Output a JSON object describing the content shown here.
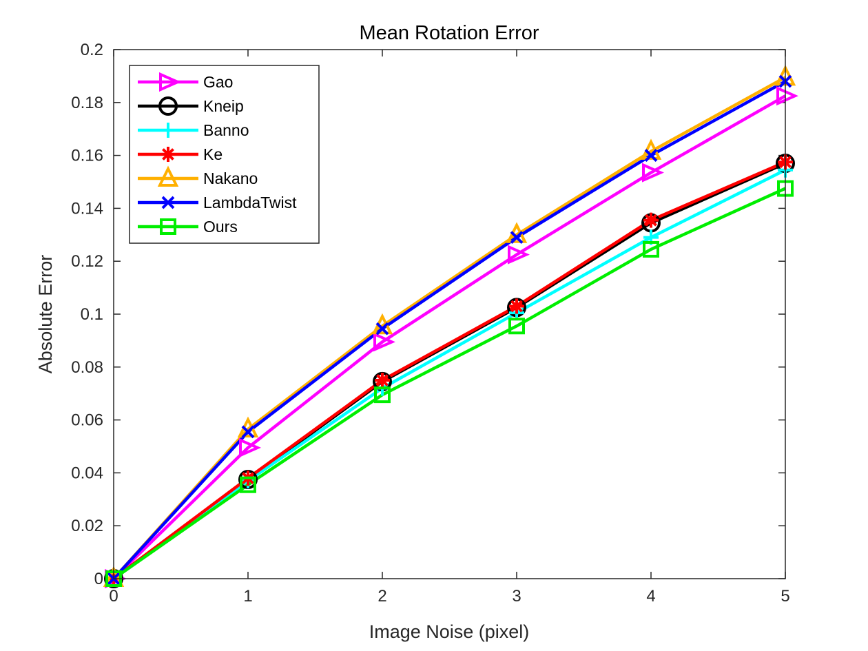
{
  "chart_data": {
    "type": "line",
    "title": "Mean Rotation Error",
    "xlabel": "Image Noise (pixel)",
    "ylabel": "Absolute Error",
    "x": [
      0,
      1,
      2,
      3,
      4,
      5
    ],
    "xlim": [
      0,
      5
    ],
    "ylim": [
      0,
      0.2
    ],
    "x_ticks": [
      "0",
      "1",
      "2",
      "3",
      "4",
      "5"
    ],
    "y_ticks": [
      "0",
      "0.02",
      "0.04",
      "0.06",
      "0.08",
      "0.1",
      "0.12",
      "0.14",
      "0.16",
      "0.18",
      "0.2"
    ],
    "grid": false,
    "legend_position": "top-left",
    "series": [
      {
        "name": "Gao",
        "color": "#ff00ff",
        "marker": "triangle-right",
        "values": [
          0,
          0.0495,
          0.0895,
          0.1225,
          0.1535,
          0.1825
        ]
      },
      {
        "name": "Kneip",
        "color": "#000000",
        "marker": "circle",
        "values": [
          0,
          0.0375,
          0.0745,
          0.1025,
          0.1345,
          0.157
        ]
      },
      {
        "name": "Banno",
        "color": "#00ffff",
        "marker": "plus",
        "values": [
          0,
          0.037,
          0.072,
          0.1005,
          0.129,
          0.1545
        ]
      },
      {
        "name": "Ke",
        "color": "#ff0000",
        "marker": "asterisk",
        "values": [
          0,
          0.038,
          0.075,
          0.103,
          0.1355,
          0.1575
        ]
      },
      {
        "name": "Nakano",
        "color": "#ffb000",
        "marker": "triangle-up",
        "values": [
          0,
          0.0565,
          0.0955,
          0.13,
          0.1615,
          0.1895
        ]
      },
      {
        "name": "LambdaTwist",
        "color": "#0000ff",
        "marker": "x",
        "values": [
          0,
          0.0555,
          0.0945,
          0.129,
          0.16,
          0.188
        ]
      },
      {
        "name": "Ours",
        "color": "#00ee00",
        "marker": "square",
        "values": [
          0,
          0.0355,
          0.0695,
          0.0955,
          0.1245,
          0.1475
        ]
      }
    ]
  }
}
